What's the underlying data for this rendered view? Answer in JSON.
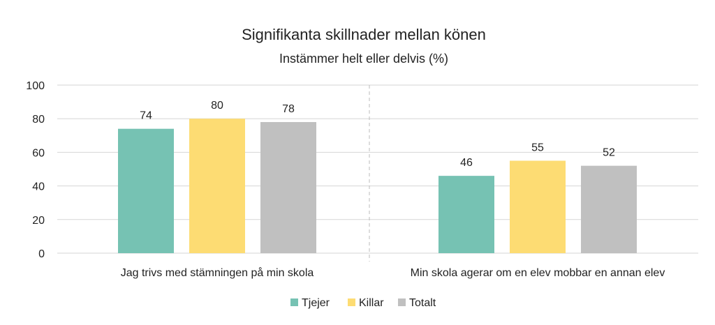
{
  "chart_data": {
    "type": "bar",
    "title": "Signifikanta skillnader mellan könen",
    "subtitle": "Instämmer helt eller delvis (%)",
    "categories": [
      "Jag trivs med stämningen på min skola",
      "Min skola agerar om en elev mobbar en annan elev"
    ],
    "series": [
      {
        "name": "Tjejer",
        "color": "#76c2b3",
        "values": [
          74,
          46
        ]
      },
      {
        "name": "Killar",
        "color": "#fddc73",
        "values": [
          80,
          55
        ]
      },
      {
        "name": "Totalt",
        "color": "#c0c0c0",
        "values": [
          78,
          52
        ]
      }
    ],
    "ylim": [
      0,
      100
    ],
    "yticks": [
      0,
      20,
      40,
      60,
      80,
      100
    ],
    "grid": true,
    "legend": "bottom",
    "data_labels": true
  }
}
